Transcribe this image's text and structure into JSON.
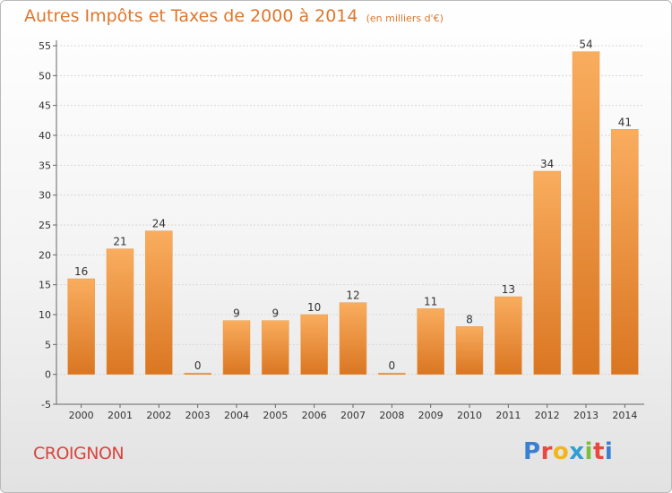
{
  "header": {
    "title": "Autres Impôts et Taxes de 2000 à 2014",
    "unit_note": "(en milliers d'€)"
  },
  "footer": {
    "commune": "CROIGNON",
    "logo_text": "Proxiti"
  },
  "colors": {
    "title": "#e0762b",
    "commune": "#d9453f",
    "bar_light": "#f7a95a",
    "bar_dark": "#dd7925",
    "grid": "#d8d8d8"
  },
  "chart_data": {
    "type": "bar",
    "title": "Autres Impôts et Taxes de 2000 à 2014",
    "categories": [
      "2000",
      "2001",
      "2002",
      "2003",
      "2004",
      "2005",
      "2006",
      "2007",
      "2008",
      "2009",
      "2010",
      "2011",
      "2012",
      "2013",
      "2014"
    ],
    "values": [
      16,
      21,
      24,
      0,
      9,
      9,
      10,
      12,
      0,
      11,
      8,
      13,
      34,
      54,
      41
    ],
    "ylim": [
      -5,
      55
    ],
    "yticks": [
      -5,
      0,
      5,
      10,
      15,
      20,
      25,
      30,
      35,
      40,
      45,
      50,
      55
    ],
    "grid": true,
    "xlabel": "",
    "ylabel": ""
  }
}
